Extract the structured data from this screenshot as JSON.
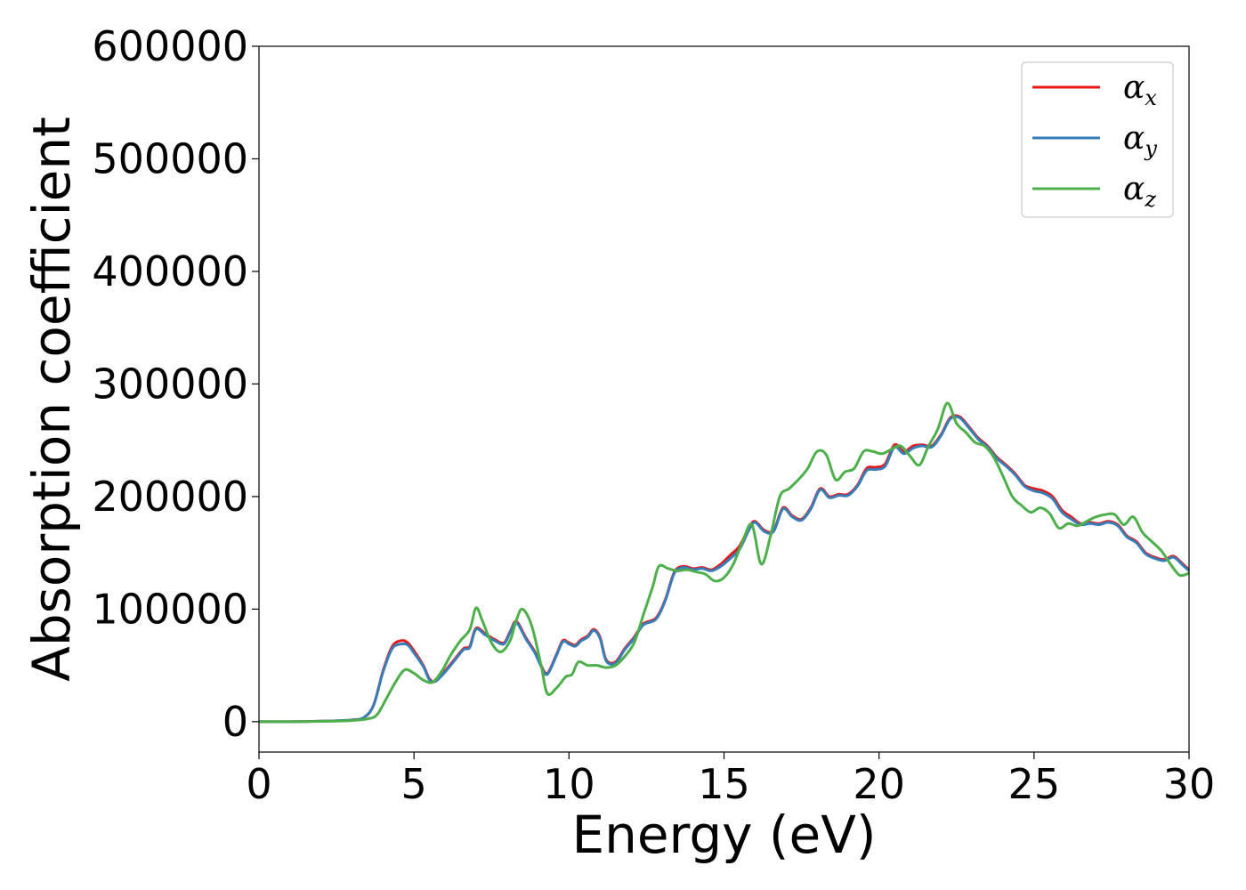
{
  "chart_data": {
    "type": "line",
    "xlabel": "Energy (eV)",
    "ylabel": "Absorption coefficient",
    "xlim": [
      0,
      30
    ],
    "ylim": [
      -27000,
      600000
    ],
    "xticks": [
      0,
      5,
      10,
      15,
      20,
      25,
      30
    ],
    "yticks": [
      0,
      100000,
      200000,
      300000,
      400000,
      500000,
      600000
    ],
    "grid": false,
    "legend_position": "top-right",
    "series": [
      {
        "name": "α",
        "subscript": "x",
        "color": "#e41a1c",
        "x": [
          0,
          1,
          2,
          3,
          3.4,
          3.7,
          4.0,
          4.3,
          4.6,
          4.8,
          5.0,
          5.3,
          5.5,
          5.7,
          6.0,
          6.3,
          6.6,
          6.8,
          7.0,
          7.3,
          7.6,
          7.9,
          8.1,
          8.3,
          8.6,
          8.9,
          9.1,
          9.3,
          9.6,
          9.8,
          10.0,
          10.2,
          10.4,
          10.6,
          10.8,
          11.0,
          11.2,
          11.5,
          11.8,
          12.1,
          12.4,
          12.8,
          13.1,
          13.4,
          13.7,
          14.0,
          14.3,
          14.6,
          14.9,
          15.2,
          15.5,
          15.8,
          16.0,
          16.3,
          16.6,
          16.9,
          17.2,
          17.5,
          17.8,
          18.1,
          18.4,
          18.7,
          19.0,
          19.3,
          19.6,
          19.9,
          20.2,
          20.5,
          20.8,
          21.1,
          21.4,
          21.7,
          22.0,
          22.3,
          22.6,
          22.9,
          23.2,
          23.5,
          23.8,
          24.1,
          24.4,
          24.7,
          25.0,
          25.3,
          25.6,
          25.9,
          26.2,
          26.5,
          26.8,
          27.1,
          27.4,
          27.7,
          28.0,
          28.3,
          28.6,
          28.9,
          29.2,
          29.5,
          29.8,
          30.0
        ],
        "y": [
          0,
          0,
          400,
          1500,
          4000,
          15000,
          45000,
          67000,
          72000,
          70000,
          63000,
          50000,
          38000,
          36000,
          45000,
          55000,
          65000,
          67000,
          83000,
          78000,
          73000,
          70000,
          80000,
          89000,
          75000,
          62000,
          50000,
          43000,
          60000,
          72000,
          70000,
          68000,
          73000,
          76000,
          82000,
          75000,
          55000,
          53000,
          65000,
          75000,
          87000,
          92000,
          108000,
          133000,
          138000,
          136000,
          137000,
          135000,
          140000,
          148000,
          156000,
          172000,
          178000,
          170000,
          170000,
          190000,
          183000,
          180000,
          190000,
          207000,
          200000,
          202000,
          202000,
          210000,
          225000,
          226000,
          229000,
          246000,
          240000,
          245000,
          246000,
          245000,
          255000,
          270000,
          271000,
          262000,
          252000,
          245000,
          235000,
          228000,
          220000,
          210000,
          207000,
          205000,
          200000,
          188000,
          182000,
          176000,
          177000,
          176000,
          178000,
          175000,
          165000,
          160000,
          150000,
          146000,
          144000,
          147000,
          140000,
          135000
        ]
      },
      {
        "name": "α",
        "subscript": "y",
        "color": "#377eb8",
        "x": [
          0,
          1,
          2,
          3,
          3.4,
          3.7,
          4.0,
          4.3,
          4.6,
          4.8,
          5.0,
          5.3,
          5.5,
          5.7,
          6.0,
          6.3,
          6.6,
          6.8,
          7.0,
          7.3,
          7.6,
          7.9,
          8.1,
          8.3,
          8.6,
          8.9,
          9.1,
          9.3,
          9.6,
          9.8,
          10.0,
          10.2,
          10.4,
          10.6,
          10.8,
          11.0,
          11.2,
          11.5,
          11.8,
          12.1,
          12.4,
          12.8,
          13.1,
          13.4,
          13.7,
          14.0,
          14.3,
          14.6,
          14.9,
          15.2,
          15.5,
          15.8,
          16.0,
          16.3,
          16.6,
          16.9,
          17.2,
          17.5,
          17.8,
          18.1,
          18.4,
          18.7,
          19.0,
          19.3,
          19.6,
          19.9,
          20.2,
          20.5,
          20.8,
          21.1,
          21.4,
          21.7,
          22.0,
          22.3,
          22.6,
          22.9,
          23.2,
          23.5,
          23.8,
          24.1,
          24.4,
          24.7,
          25.0,
          25.3,
          25.6,
          25.9,
          26.2,
          26.5,
          26.8,
          27.1,
          27.4,
          27.7,
          28.0,
          28.3,
          28.6,
          28.9,
          29.2,
          29.5,
          29.8,
          30.0
        ],
        "y": [
          0,
          0,
          400,
          1500,
          4000,
          15000,
          44000,
          65000,
          69000,
          68000,
          61000,
          49000,
          37000,
          36000,
          44000,
          54000,
          64000,
          66000,
          82000,
          77000,
          72000,
          69000,
          79000,
          88000,
          74000,
          61000,
          49000,
          42000,
          59000,
          71000,
          69000,
          67000,
          72000,
          75000,
          81000,
          74000,
          54000,
          52000,
          64000,
          74000,
          86000,
          91000,
          107000,
          132000,
          137000,
          135000,
          136000,
          134000,
          138000,
          145000,
          153000,
          170000,
          177000,
          169000,
          169000,
          189000,
          182000,
          179000,
          189000,
          206000,
          199000,
          201000,
          201000,
          209000,
          223000,
          224000,
          227000,
          244000,
          238000,
          243000,
          245000,
          244000,
          254000,
          269000,
          270000,
          261000,
          251000,
          244000,
          234000,
          227000,
          219000,
          209000,
          205000,
          203000,
          198000,
          186000,
          180000,
          175000,
          176000,
          175000,
          177000,
          174000,
          164000,
          159000,
          149000,
          145000,
          143000,
          146000,
          139000,
          134000
        ]
      },
      {
        "name": "α",
        "subscript": "z",
        "color": "#4daf4a",
        "x": [
          0,
          1,
          2,
          3,
          3.5,
          3.8,
          4.1,
          4.4,
          4.7,
          5.0,
          5.3,
          5.6,
          5.9,
          6.2,
          6.5,
          6.8,
          7.0,
          7.2,
          7.5,
          7.8,
          8.1,
          8.3,
          8.5,
          8.8,
          9.1,
          9.3,
          9.6,
          9.9,
          10.1,
          10.3,
          10.6,
          10.9,
          11.2,
          11.5,
          11.8,
          12.1,
          12.4,
          12.7,
          12.9,
          13.2,
          13.5,
          13.8,
          14.1,
          14.4,
          14.7,
          15.0,
          15.3,
          15.6,
          15.9,
          16.2,
          16.5,
          16.8,
          17.1,
          17.4,
          17.7,
          18.0,
          18.3,
          18.6,
          18.9,
          19.2,
          19.5,
          19.8,
          20.1,
          20.4,
          20.7,
          21.0,
          21.3,
          21.6,
          21.9,
          22.2,
          22.5,
          22.8,
          23.1,
          23.4,
          23.7,
          24.0,
          24.3,
          24.6,
          24.9,
          25.2,
          25.5,
          25.8,
          26.1,
          26.4,
          26.7,
          27.0,
          27.3,
          27.6,
          27.9,
          28.2,
          28.5,
          28.8,
          29.1,
          29.4,
          29.7,
          30.0
        ],
        "y": [
          0,
          0,
          300,
          1000,
          2500,
          6000,
          20000,
          35000,
          46000,
          43000,
          37000,
          35000,
          45000,
          60000,
          72000,
          82000,
          101000,
          90000,
          70000,
          62000,
          72000,
          90000,
          100000,
          85000,
          50000,
          25000,
          30000,
          40000,
          42000,
          53000,
          50000,
          50000,
          48000,
          50000,
          58000,
          70000,
          95000,
          120000,
          138000,
          136000,
          134000,
          135000,
          133000,
          131000,
          125000,
          128000,
          140000,
          160000,
          175000,
          140000,
          165000,
          200000,
          207000,
          215000,
          225000,
          240000,
          237000,
          215000,
          222000,
          225000,
          240000,
          240000,
          238000,
          242000,
          245000,
          236000,
          228000,
          245000,
          260000,
          283000,
          265000,
          257000,
          248000,
          245000,
          235000,
          218000,
          200000,
          192000,
          186000,
          190000,
          185000,
          172000,
          176000,
          174000,
          178000,
          182000,
          184000,
          184000,
          175000,
          182000,
          168000,
          160000,
          152000,
          140000,
          130000,
          132000
        ]
      }
    ]
  }
}
